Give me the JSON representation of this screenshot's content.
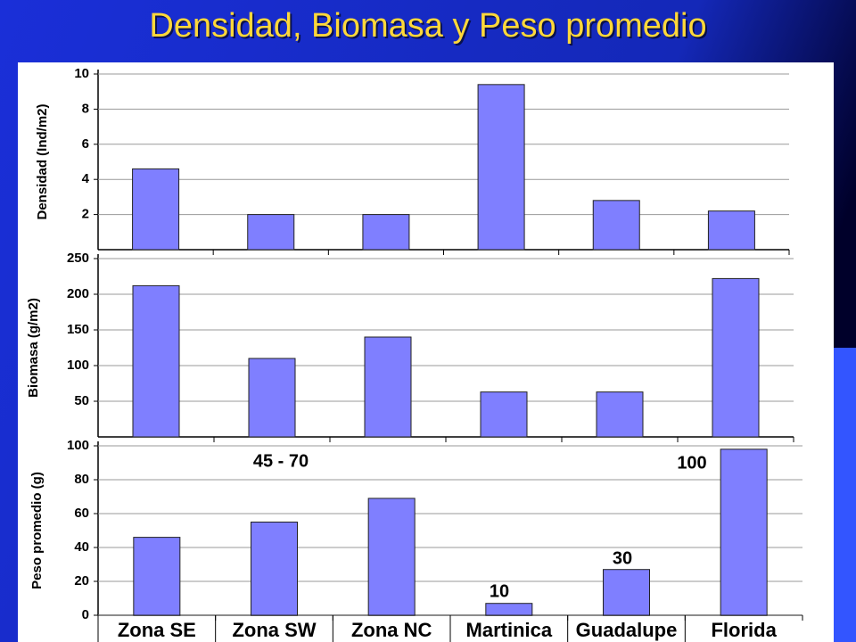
{
  "title": "Densidad, Biomasa y Peso promedio",
  "chart_data": [
    {
      "type": "bar",
      "ylabel": "Densidad (Ind/m2)",
      "values": [
        4.6,
        2.0,
        2.0,
        9.4,
        2.8,
        2.2
      ],
      "color": "#7f7fff",
      "ylim": [
        0,
        10
      ],
      "yticks": [
        2,
        4,
        6,
        8,
        10
      ],
      "grid": true
    },
    {
      "type": "bar",
      "ylabel": "Biomasa (g/m2)",
      "values": [
        212,
        110,
        140,
        63,
        63,
        222
      ],
      "color": "#7f7fff",
      "ylim": [
        0,
        250
      ],
      "yticks": [
        50,
        100,
        150,
        200,
        250
      ],
      "grid": true
    },
    {
      "type": "bar",
      "ylabel": "Peso promedio (g)",
      "categories": [
        "Zona SE",
        "Zona SW",
        "Zona NC",
        "Martinica",
        "Guadalupe",
        "Florida"
      ],
      "values": [
        46,
        55,
        69,
        7,
        27,
        98
      ],
      "color": "#7f7fff",
      "ylim": [
        0,
        100
      ],
      "yticks": [
        0,
        20,
        40,
        60,
        80,
        100
      ],
      "grid": true,
      "annotations": [
        "45 - 70",
        "10",
        "30",
        "100"
      ]
    }
  ]
}
